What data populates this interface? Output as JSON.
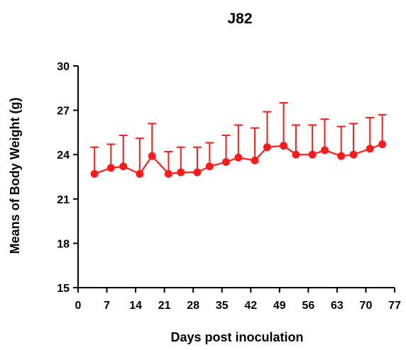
{
  "chart_data": {
    "type": "line",
    "title": "J82",
    "xlabel": "Days post inoculation",
    "ylabel": "Means of Body Weight (g)",
    "xlim": [
      0,
      77
    ],
    "ylim": [
      15,
      30
    ],
    "x_ticks": [
      0,
      7,
      14,
      21,
      28,
      35,
      42,
      49,
      56,
      63,
      70,
      77
    ],
    "y_ticks": [
      15,
      18,
      21,
      24,
      27,
      30
    ],
    "grid": false,
    "legend": "none",
    "color": "#ff1a1a",
    "series": [
      {
        "x": [
          4,
          8,
          11,
          15,
          18,
          22,
          25,
          29,
          32,
          36,
          39,
          43,
          46,
          50,
          53,
          57,
          60,
          64,
          67,
          71,
          74
        ],
        "y": [
          22.7,
          23.1,
          23.2,
          22.7,
          23.9,
          22.7,
          22.8,
          22.8,
          23.2,
          23.5,
          23.8,
          23.6,
          24.5,
          24.6,
          24.0,
          24.0,
          24.3,
          23.9,
          24.0,
          24.4,
          24.7
        ],
        "error_upper": [
          24.5,
          24.7,
          25.3,
          25.1,
          26.1,
          24.2,
          24.5,
          24.5,
          24.8,
          25.3,
          26.0,
          25.8,
          26.9,
          27.5,
          26.0,
          26.0,
          26.4,
          25.9,
          26.1,
          26.5,
          26.7
        ]
      }
    ]
  }
}
